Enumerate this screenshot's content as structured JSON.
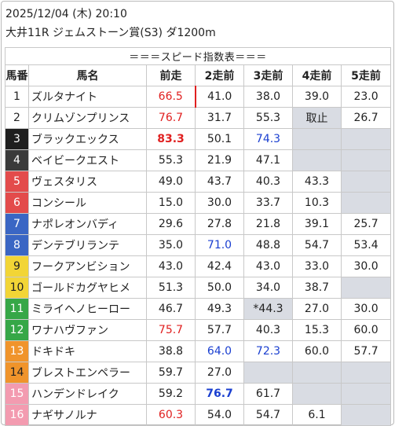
{
  "date": "2025/12/04 (木) 20:10",
  "race": "大井11R ジェムストーン賞(S3) ダ1200m",
  "banner": "＝＝＝スピード指数表＝＝＝",
  "headers": [
    "馬番",
    "馬名",
    "前走",
    "2走前",
    "3走前",
    "4走前",
    "5走前"
  ],
  "colors": {
    "waku1": "#ffffff",
    "waku2": "#ffffff",
    "waku3": "#1e1e1e",
    "waku4": "#3a3a3a",
    "waku5": "#e34b4b",
    "waku6": "#e34b4b",
    "waku7": "#3a66c4",
    "waku8": "#3a66c4",
    "waku9": "#f2d536",
    "waku10": "#f2d536",
    "waku11": "#36a747",
    "waku12": "#36a747",
    "waku13": "#f0942b",
    "waku14": "#f0942b",
    "waku15": "#f39bb0",
    "waku16": "#f39bb0"
  },
  "rows": [
    {
      "num": "1",
      "name": "ズルタナイト",
      "v": [
        "66.5",
        "41.0",
        "38.0",
        "39.0",
        "23.0"
      ]
    },
    {
      "num": "2",
      "name": "クリムゾンプリンス",
      "v": [
        "76.7",
        "31.7",
        "55.3",
        "取止",
        "26.7"
      ]
    },
    {
      "num": "3",
      "name": "ブラックエックス",
      "v": [
        "83.3",
        "50.1",
        "74.3",
        "",
        ""
      ]
    },
    {
      "num": "4",
      "name": "ベイビークエスト",
      "v": [
        "55.3",
        "21.9",
        "47.1",
        "",
        ""
      ]
    },
    {
      "num": "5",
      "name": "ヴェスタリス",
      "v": [
        "49.0",
        "43.7",
        "40.3",
        "43.3",
        ""
      ]
    },
    {
      "num": "6",
      "name": "コンシール",
      "v": [
        "15.0",
        "30.0",
        "33.7",
        "10.3",
        ""
      ]
    },
    {
      "num": "7",
      "name": "ナポレオンバディ",
      "v": [
        "29.6",
        "27.8",
        "21.8",
        "39.1",
        "25.7"
      ]
    },
    {
      "num": "8",
      "name": "デンテブリランテ",
      "v": [
        "35.0",
        "71.0",
        "48.8",
        "54.7",
        "53.4"
      ]
    },
    {
      "num": "9",
      "name": "フークアンビション",
      "v": [
        "43.0",
        "42.4",
        "43.0",
        "33.0",
        "30.0"
      ]
    },
    {
      "num": "10",
      "name": "ゴールドカグヤヒメ",
      "v": [
        "51.3",
        "50.0",
        "34.0",
        "38.7",
        ""
      ]
    },
    {
      "num": "11",
      "name": "ミライヘノヒーロー",
      "v": [
        "46.7",
        "49.3",
        "*44.3",
        "27.0",
        "30.0"
      ]
    },
    {
      "num": "12",
      "name": "ワナハヴファン",
      "v": [
        "75.7",
        "57.7",
        "40.3",
        "15.3",
        "60.0"
      ]
    },
    {
      "num": "13",
      "name": "ドキドキ",
      "v": [
        "38.8",
        "64.0",
        "72.3",
        "60.0",
        "57.7"
      ]
    },
    {
      "num": "14",
      "name": "ブレストエンペラー",
      "v": [
        "59.7",
        "27.0",
        "",
        "",
        ""
      ]
    },
    {
      "num": "15",
      "name": "ハンデンドレイク",
      "v": [
        "59.2",
        "76.7",
        "61.7",
        "",
        ""
      ]
    },
    {
      "num": "16",
      "name": "ナギサノルナ",
      "v": [
        "60.3",
        "54.0",
        "54.7",
        "6.1",
        ""
      ]
    }
  ]
}
